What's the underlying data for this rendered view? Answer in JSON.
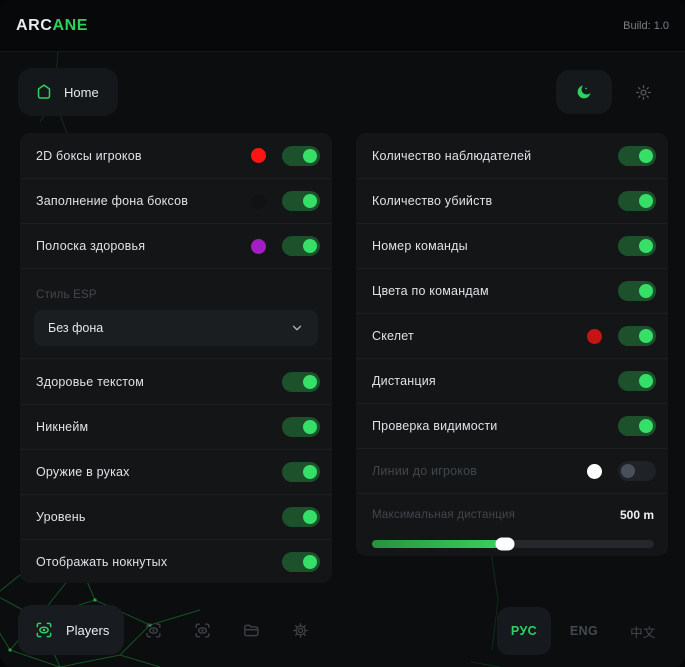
{
  "brand": {
    "white": "ARC",
    "green": "ANE"
  },
  "topbar": {
    "build": "Build: 1.0"
  },
  "nav": {
    "home_label": "Home"
  },
  "left_panel": {
    "rows_top": [
      {
        "label": "2D боксы игроков",
        "color": "#ff1414",
        "toggle": "on"
      },
      {
        "label": "Заполнение фона боксов",
        "color": "#101214",
        "toggle": "on"
      },
      {
        "label": "Полоска здоровья",
        "color": "#a21fc4",
        "toggle": "on"
      }
    ],
    "esp_style_label": "Стиль ESP",
    "esp_style_value": "Без фона",
    "rows_bottom": [
      {
        "label": "Здоровье текстом",
        "toggle": "on"
      },
      {
        "label": "Никнейм",
        "toggle": "on"
      },
      {
        "label": "Оружие в руках",
        "toggle": "on"
      },
      {
        "label": "Уровень",
        "toggle": "on"
      },
      {
        "label": "Отображать нокнутых",
        "toggle": "on"
      }
    ]
  },
  "right_panel": {
    "rows": [
      {
        "label": "Количество наблюдателей",
        "toggle": "on"
      },
      {
        "label": "Количество убийств",
        "toggle": "on"
      },
      {
        "label": "Номер команды",
        "toggle": "on"
      },
      {
        "label": "Цвета по командам",
        "toggle": "on"
      },
      {
        "label": "Скелет",
        "color": "#c41414",
        "toggle": "on"
      },
      {
        "label": "Дистанция",
        "toggle": "on"
      },
      {
        "label": "Проверка видимости",
        "toggle": "on"
      },
      {
        "label": "Линии до игроков",
        "color": "#ffffff",
        "toggle": "off",
        "dim": true
      }
    ],
    "slider": {
      "label": "Максимальная дистанция",
      "value": "500 m",
      "percent": 47
    }
  },
  "bottombar": {
    "players_label": "Players",
    "languages": [
      {
        "label": "РУС",
        "active": true
      },
      {
        "label": "ENG",
        "active": false
      },
      {
        "label": "中文",
        "active": false
      }
    ]
  },
  "colors": {
    "accent": "#2fd05f",
    "toggle_on_knob": "#36df67",
    "toggle_on_track": "#1d512c"
  }
}
